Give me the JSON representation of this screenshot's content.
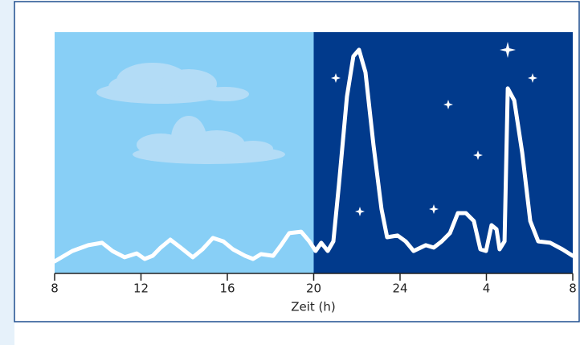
{
  "chart_data": {
    "type": "line",
    "x_label": "Zeit (h)",
    "xlim": [
      8,
      32
    ],
    "xticks": [
      8,
      12,
      16,
      20,
      24,
      {
        "value": 28,
        "label": "4"
      },
      {
        "value": 32,
        "label": "8"
      }
    ],
    "ylim": [
      0,
      100
    ],
    "shading": [
      {
        "from": 8,
        "to": 20,
        "color": "#88cff6"
      },
      {
        "from": 20,
        "to": 32,
        "color": "#013a8c"
      }
    ],
    "series": [
      {
        "color": "#ffffff",
        "x": [
          8,
          8.82,
          9.56,
          10.2,
          10.68,
          11.24,
          11.8,
          12.17,
          12.54,
          12.91,
          13.36,
          13.84,
          14.4,
          14.85,
          15.33,
          15.81,
          16.26,
          16.82,
          17.19,
          17.56,
          18.12,
          18.49,
          18.87,
          19.42,
          19.8,
          20.09,
          20.35,
          20.65,
          20.91,
          21.17,
          21.54,
          21.84,
          22.1,
          22.4,
          22.77,
          23.14,
          23.4,
          23.89,
          24.26,
          24.63,
          25.19,
          25.56,
          25.93,
          26.31,
          26.68,
          27.05,
          27.42,
          27.72,
          27.98,
          28.24,
          28.47,
          28.61,
          28.84,
          28.99,
          29.29,
          29.66,
          30.03,
          30.4,
          30.96,
          31.52,
          32
        ],
        "values": [
          5,
          9.3,
          11.7,
          12.7,
          9.3,
          6.7,
          8.3,
          6,
          7.3,
          10.7,
          14,
          10.7,
          6.7,
          10,
          14.7,
          13.3,
          10,
          7.3,
          6,
          8,
          7.3,
          11.7,
          16.7,
          17.3,
          13.3,
          9.3,
          12.7,
          9.3,
          13.3,
          36.7,
          73.3,
          90,
          92.7,
          83.3,
          53.3,
          26.7,
          15,
          15.7,
          13.3,
          9.3,
          11.7,
          10.7,
          13.3,
          16.7,
          25,
          25,
          21.7,
          10,
          9.3,
          20,
          18.3,
          10,
          13.3,
          76.7,
          71.7,
          50,
          21.7,
          13.3,
          12.7,
          10,
          7.3
        ]
      }
    ]
  }
}
